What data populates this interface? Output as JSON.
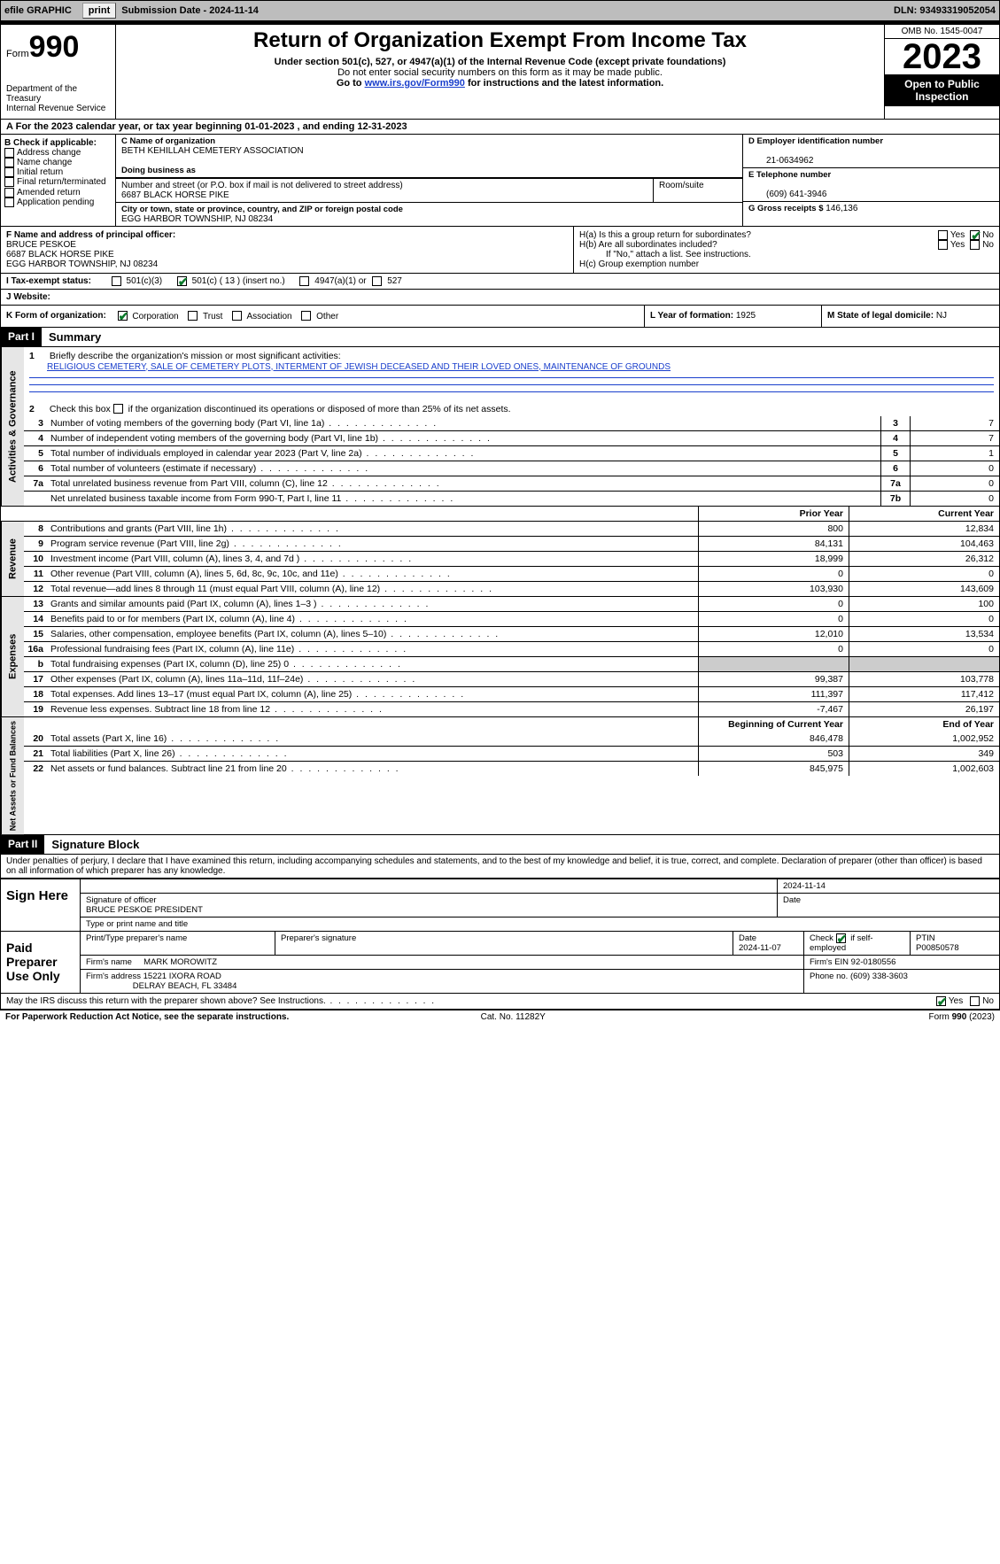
{
  "topbar": {
    "efile": "efile GRAPHIC",
    "print": "print",
    "submission_label": "Submission Date - 2024-11-14",
    "dln_label": "DLN: 93493319052054"
  },
  "header": {
    "form_label": "Form",
    "form_num": "990",
    "dept": "Department of the Treasury",
    "irs": "Internal Revenue Service",
    "title": "Return of Organization Exempt From Income Tax",
    "sub1": "Under section 501(c), 527, or 4947(a)(1) of the Internal Revenue Code (except private foundations)",
    "sub2": "Do not enter social security numbers on this form as it may be made public.",
    "sub3_pre": "Go to ",
    "sub3_link": "www.irs.gov/Form990",
    "sub3_post": " for instructions and the latest information.",
    "omb": "OMB No. 1545-0047",
    "year": "2023",
    "open": "Open to Public Inspection"
  },
  "period": {
    "line": "For the 2023 calendar year, or tax year beginning 01-01-2023   , and ending 12-31-2023"
  },
  "boxB": {
    "label": "B Check if applicable:",
    "opts": [
      "Address change",
      "Name change",
      "Initial return",
      "Final return/terminated",
      "Amended return",
      "Application pending"
    ]
  },
  "boxC": {
    "name_lbl": "C Name of organization",
    "name": "BETH KEHILLAH CEMETERY ASSOCIATION",
    "dba_lbl": "Doing business as",
    "addr_lbl": "Number and street (or P.O. box if mail is not delivered to street address)",
    "room_lbl": "Room/suite",
    "addr": "6687 BLACK HORSE PIKE",
    "city_lbl": "City or town, state or province, country, and ZIP or foreign postal code",
    "city": "EGG HARBOR TOWNSHIP, NJ  08234"
  },
  "boxD": {
    "lbl": "D Employer identification number",
    "val": "21-0634962"
  },
  "boxE": {
    "lbl": "E Telephone number",
    "val": "(609) 641-3946"
  },
  "boxG": {
    "lbl": "G Gross receipts $",
    "val": "146,136"
  },
  "boxF": {
    "lbl": "F  Name and address of principal officer:",
    "name": "BRUCE PESKOE",
    "addr1": "6687 BLACK HORSE PIKE",
    "addr2": "EGG HARBOR TOWNSHIP, NJ  08234"
  },
  "boxH": {
    "a": "H(a)  Is this a group return for subordinates?",
    "b": "H(b)  Are all subordinates included?",
    "bNote": "If \"No,\" attach a list. See instructions.",
    "c": "H(c)  Group exemption number"
  },
  "taxexempt": {
    "lbl": "I   Tax-exempt status:",
    "o1": "501(c)(3)",
    "o2": "501(c) ( 13 ) (insert no.)",
    "o3": "4947(a)(1) or",
    "o4": "527"
  },
  "website_lbl": "J   Website:",
  "boxK": {
    "lbl": "K Form of organization:",
    "opts": [
      "Corporation",
      "Trust",
      "Association",
      "Other"
    ]
  },
  "boxL": {
    "lbl": "L Year of formation:",
    "val": "1925"
  },
  "boxM": {
    "lbl": "M State of legal domicile:",
    "val": "NJ"
  },
  "part1": {
    "hdr": "Part I",
    "title": "Summary",
    "l1_lbl": "Briefly describe the organization's mission or most significant activities:",
    "l1_txt": "RELIGIOUS CEMETERY, SALE OF CEMETERY PLOTS, INTERMENT OF JEWISH DECEASED AND THEIR LOVED ONES, MAINTENANCE OF GROUNDS",
    "l2": "Check this box        if the organization discontinued its operations or disposed of more than 25% of its net assets.",
    "rows_a": [
      {
        "n": "3",
        "t": "Number of voting members of the governing body (Part VI, line 1a)",
        "b": "3",
        "v": "7"
      },
      {
        "n": "4",
        "t": "Number of independent voting members of the governing body (Part VI, line 1b)",
        "b": "4",
        "v": "7"
      },
      {
        "n": "5",
        "t": "Total number of individuals employed in calendar year 2023 (Part V, line 2a)",
        "b": "5",
        "v": "1"
      },
      {
        "n": "6",
        "t": "Total number of volunteers (estimate if necessary)",
        "b": "6",
        "v": "0"
      },
      {
        "n": "7a",
        "t": "Total unrelated business revenue from Part VIII, column (C), line 12",
        "b": "7a",
        "v": "0"
      },
      {
        "n": "",
        "t": "Net unrelated business taxable income from Form 990-T, Part I, line 11",
        "b": "7b",
        "v": "0"
      }
    ],
    "col_hdr1": "Prior Year",
    "col_hdr2": "Current Year",
    "rev": {
      "tab": "Revenue",
      "rows": [
        {
          "n": "8",
          "t": "Contributions and grants (Part VIII, line 1h)",
          "p": "800",
          "c": "12,834"
        },
        {
          "n": "9",
          "t": "Program service revenue (Part VIII, line 2g)",
          "p": "84,131",
          "c": "104,463"
        },
        {
          "n": "10",
          "t": "Investment income (Part VIII, column (A), lines 3, 4, and 7d )",
          "p": "18,999",
          "c": "26,312"
        },
        {
          "n": "11",
          "t": "Other revenue (Part VIII, column (A), lines 5, 6d, 8c, 9c, 10c, and 11e)",
          "p": "0",
          "c": "0"
        },
        {
          "n": "12",
          "t": "Total revenue—add lines 8 through 11 (must equal Part VIII, column (A), line 12)",
          "p": "103,930",
          "c": "143,609"
        }
      ]
    },
    "exp": {
      "tab": "Expenses",
      "rows": [
        {
          "n": "13",
          "t": "Grants and similar amounts paid (Part IX, column (A), lines 1–3 )",
          "p": "0",
          "c": "100"
        },
        {
          "n": "14",
          "t": "Benefits paid to or for members (Part IX, column (A), line 4)",
          "p": "0",
          "c": "0"
        },
        {
          "n": "15",
          "t": "Salaries, other compensation, employee benefits (Part IX, column (A), lines 5–10)",
          "p": "12,010",
          "c": "13,534"
        },
        {
          "n": "16a",
          "t": "Professional fundraising fees (Part IX, column (A), line 11e)",
          "p": "0",
          "c": "0"
        },
        {
          "n": "b",
          "t": "Total fundraising expenses (Part IX, column (D), line 25) 0",
          "p": "",
          "c": "",
          "shade": true
        },
        {
          "n": "17",
          "t": "Other expenses (Part IX, column (A), lines 11a–11d, 11f–24e)",
          "p": "99,387",
          "c": "103,778"
        },
        {
          "n": "18",
          "t": "Total expenses. Add lines 13–17 (must equal Part IX, column (A), line 25)",
          "p": "111,397",
          "c": "117,412"
        },
        {
          "n": "19",
          "t": "Revenue less expenses. Subtract line 18 from line 12",
          "p": "-7,467",
          "c": "26,197"
        }
      ]
    },
    "na": {
      "tab": "Net Assets or Fund Balances",
      "h1": "Beginning of Current Year",
      "h2": "End of Year",
      "rows": [
        {
          "n": "20",
          "t": "Total assets (Part X, line 16)",
          "p": "846,478",
          "c": "1,002,952"
        },
        {
          "n": "21",
          "t": "Total liabilities (Part X, line 26)",
          "p": "503",
          "c": "349"
        },
        {
          "n": "22",
          "t": "Net assets or fund balances. Subtract line 21 from line 20",
          "p": "845,975",
          "c": "1,002,603"
        }
      ]
    }
  },
  "part2": {
    "hdr": "Part II",
    "title": "Signature Block",
    "decl": "Under penalties of perjury, I declare that I have examined this return, including accompanying schedules and statements, and to the best of my knowledge and belief, it is true, correct, and complete. Declaration of preparer (other than officer) is based on all information of which preparer has any knowledge."
  },
  "sign": {
    "here": "Sign Here",
    "sig_lbl": "Signature of officer",
    "date_lbl": "Date",
    "date": "2024-11-14",
    "name": "BRUCE PESKOE  PRESIDENT",
    "name_lbl": "Type or print name and title"
  },
  "prep": {
    "label": "Paid Preparer Use Only",
    "print_lbl": "Print/Type preparer's name",
    "sig_lbl": "Preparer's signature",
    "date_lbl": "Date",
    "date": "2024-11-07",
    "self_lbl": "Check         if self-employed",
    "ptin_lbl": "PTIN",
    "ptin": "P00850578",
    "firm_name_lbl": "Firm's name",
    "firm_name": "MARK MOROWITZ",
    "firm_ein_lbl": "Firm's EIN",
    "firm_ein": "92-0180556",
    "firm_addr_lbl": "Firm's address",
    "firm_addr1": "15221 IXORA ROAD",
    "firm_addr2": "DELRAY BEACH, FL  33484",
    "phone_lbl": "Phone no.",
    "phone": "(609) 338-3603"
  },
  "discuss": "May the IRS discuss this return with the preparer shown above? See Instructions.",
  "footer": {
    "l": "For Paperwork Reduction Act Notice, see the separate instructions.",
    "m": "Cat. No. 11282Y",
    "r": "Form 990 (2023)"
  },
  "yesno": {
    "yes": "Yes",
    "no": "No"
  }
}
